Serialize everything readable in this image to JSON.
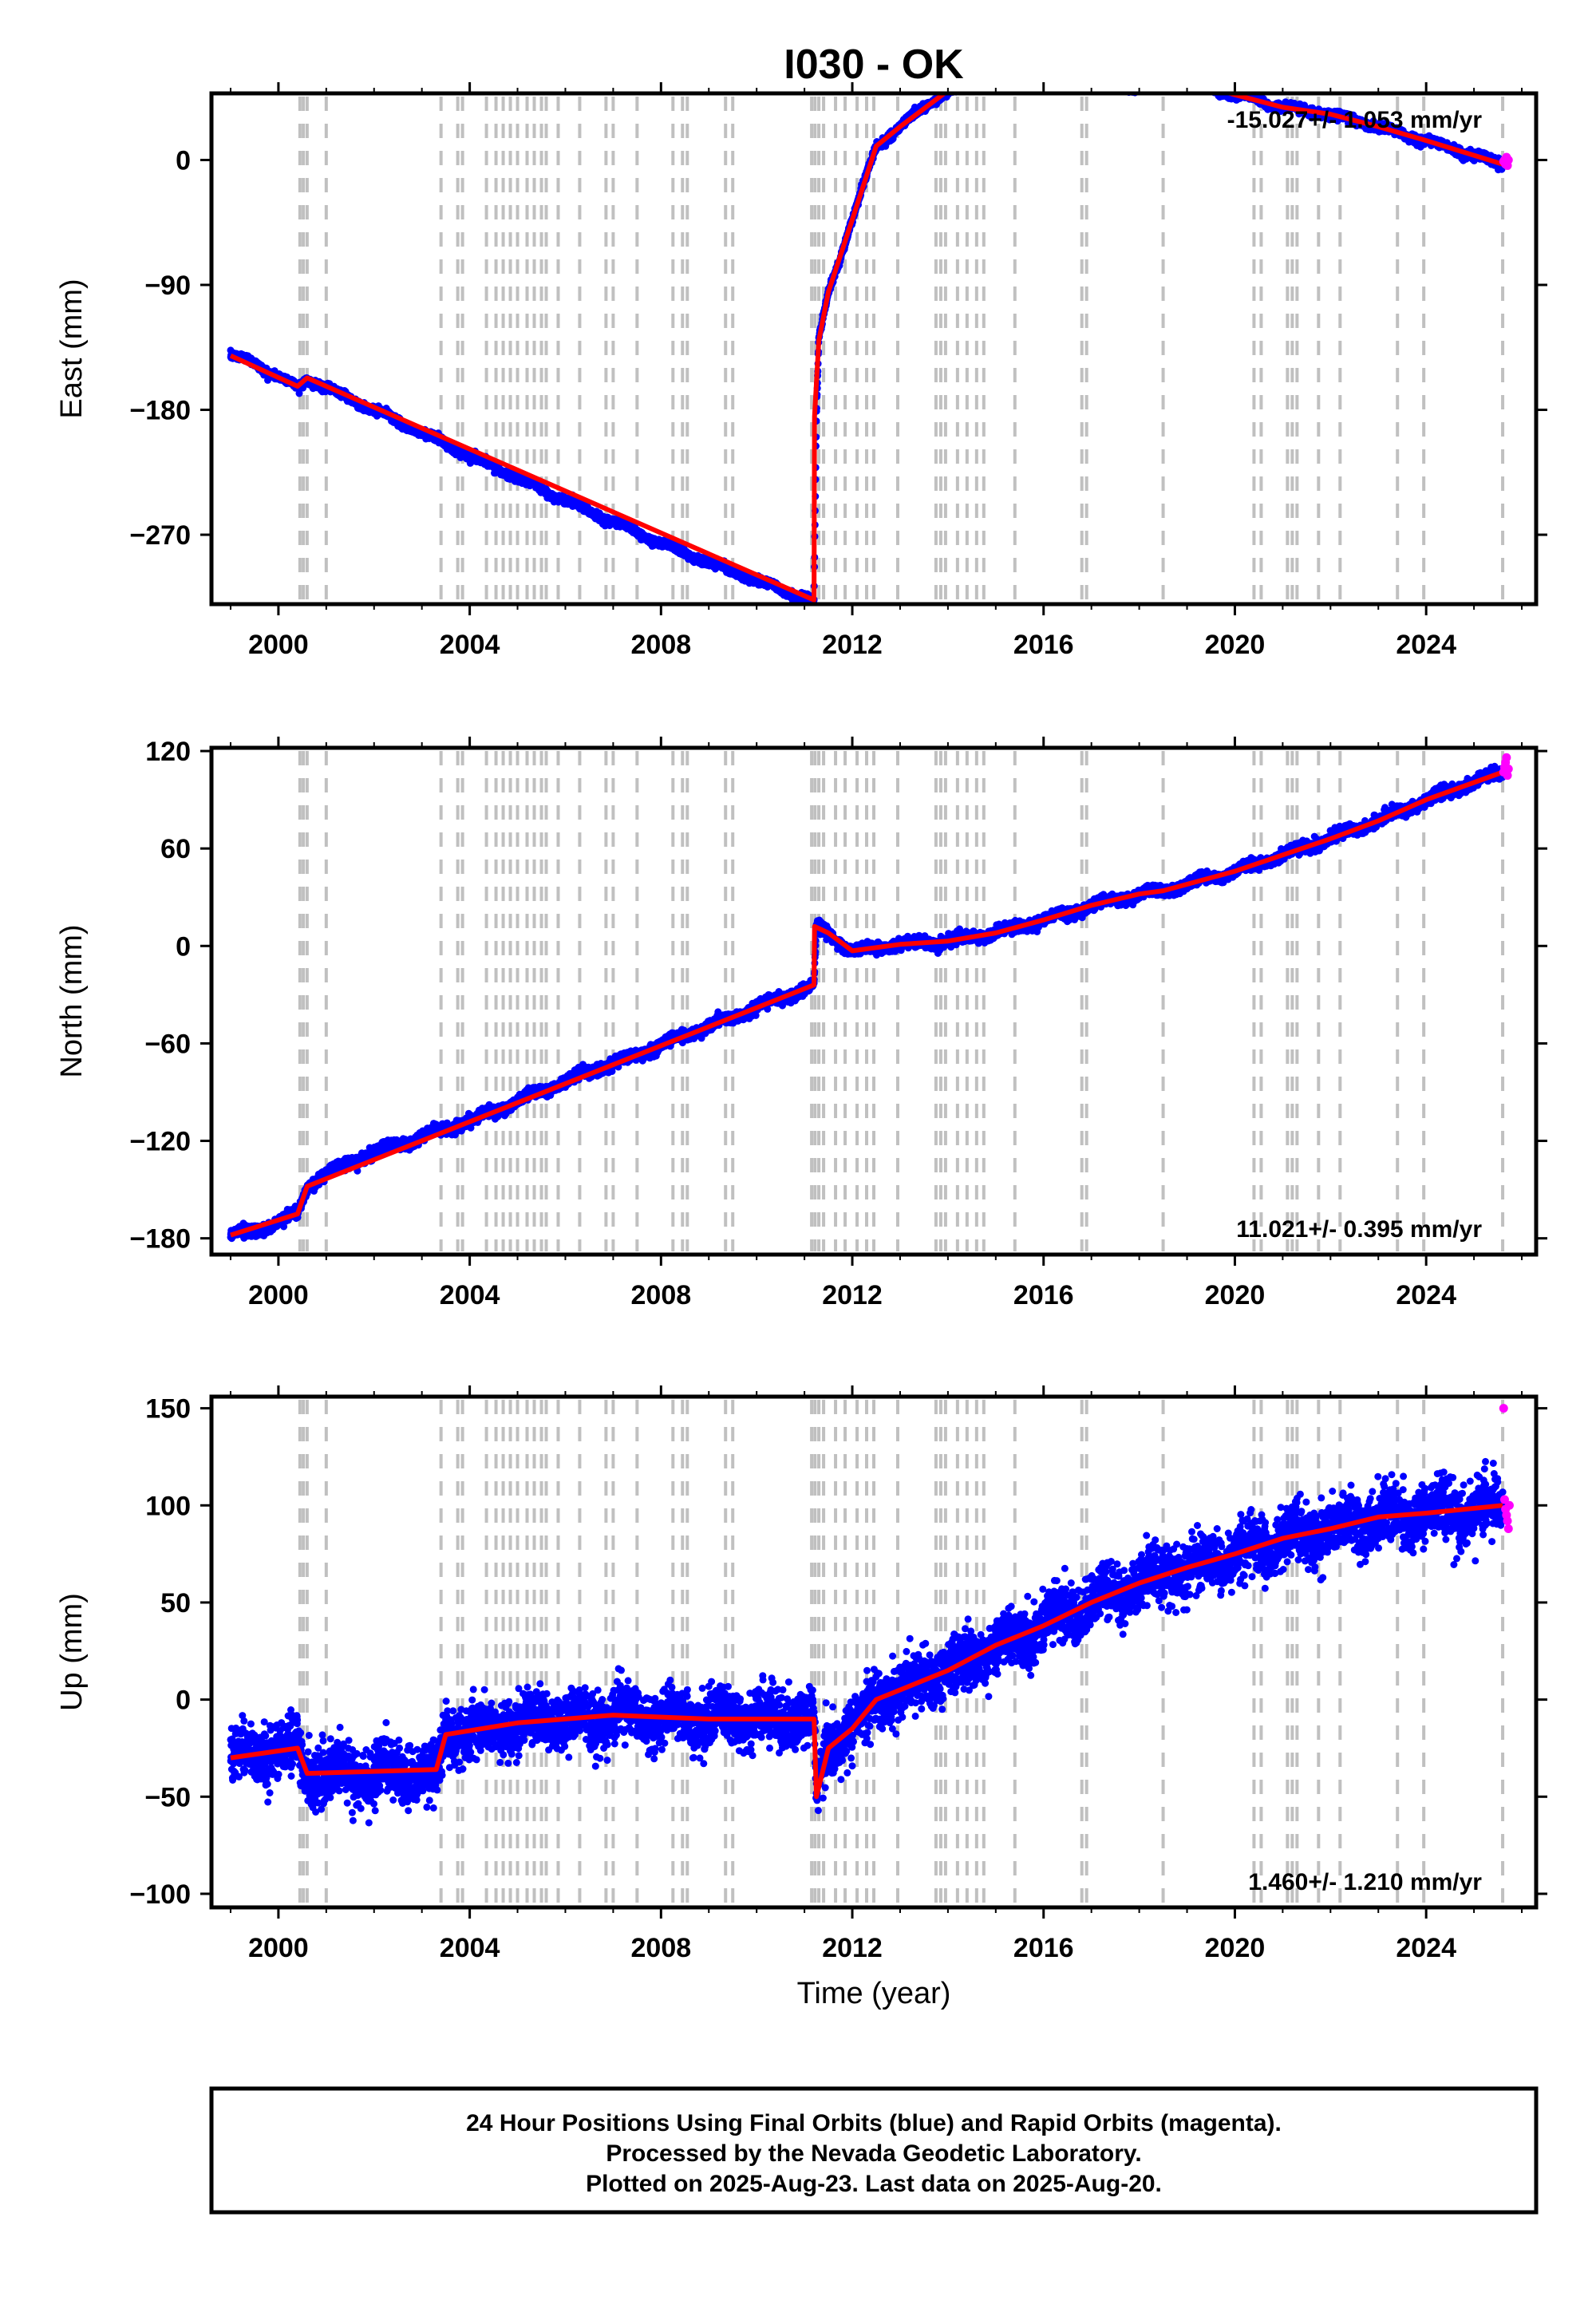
{
  "chart_data": [
    {
      "type": "scatter",
      "title": "I030 - OK",
      "ylabel": "East (mm)",
      "xlabel": "",
      "rate_label": "-15.027+/- 1.053 mm/yr",
      "xlim": [
        1998.6,
        2026.3
      ],
      "ylim": [
        -320,
        48
      ],
      "xticks": [
        2000,
        2004,
        2008,
        2012,
        2016,
        2020,
        2024
      ],
      "yticks": [
        0,
        -90,
        -180,
        -270
      ],
      "grid": false,
      "series": [
        {
          "name": "24 Hour Positions Using Final Orbits (blue)",
          "color": "#0000ff",
          "anchors": [
            [
              1999.0,
              -141
            ],
            [
              1999.5,
              -146
            ],
            [
              2000.0,
              -156
            ],
            [
              2000.4,
              -164
            ],
            [
              2000.6,
              -158
            ],
            [
              2001.0,
              -164
            ],
            [
              2002.0,
              -180
            ],
            [
              2004.0,
              -213
            ],
            [
              2006.0,
              -245
            ],
            [
              2008.0,
              -276
            ],
            [
              2010.0,
              -303
            ],
            [
              2011.2,
              -318
            ],
            [
              2011.25,
              -185
            ],
            [
              2011.3,
              -130
            ],
            [
              2011.5,
              -95
            ],
            [
              2012.0,
              -43
            ],
            [
              2012.5,
              10
            ],
            [
              2013.0,
              24
            ],
            [
              2013.5,
              38
            ],
            [
              2014.0,
              50
            ],
            [
              2015.0,
              58
            ],
            [
              2016.0,
              62
            ],
            [
              2017.0,
              56
            ],
            [
              2018.0,
              51
            ],
            [
              2018.5,
              57
            ],
            [
              2019.0,
              57
            ],
            [
              2020.0,
              47
            ],
            [
              2021.0,
              38
            ],
            [
              2022.0,
              33
            ],
            [
              2023.0,
              24
            ],
            [
              2024.0,
              14
            ],
            [
              2025.6,
              -3
            ]
          ]
        },
        {
          "name": "Rapid Orbits (magenta)",
          "color": "#ff00ff",
          "points": [
            [
              2025.62,
              -1
            ],
            [
              2025.64,
              0
            ],
            [
              2025.66,
              -3
            ],
            [
              2025.68,
              2
            ],
            [
              2025.7,
              -4
            ],
            [
              2025.72,
              0
            ]
          ]
        },
        {
          "name": "model",
          "color": "#ff0000",
          "points": [
            [
              1999.0,
              -141
            ],
            [
              2000.4,
              -163
            ],
            [
              2000.6,
              -157
            ],
            [
              2011.2,
              -317
            ],
            [
              2011.21,
              -185
            ],
            [
              2011.3,
              -130
            ],
            [
              2011.5,
              -95
            ],
            [
              2012.0,
              -43
            ],
            [
              2012.5,
              10
            ],
            [
              2013.0,
              24
            ],
            [
              2014.0,
              50
            ],
            [
              2015.0,
              58
            ],
            [
              2016.0,
              62
            ],
            [
              2017.0,
              56
            ],
            [
              2018.45,
              52
            ],
            [
              2018.5,
              57
            ],
            [
              2019.0,
              57
            ],
            [
              2020.0,
              47
            ],
            [
              2021.0,
              38
            ],
            [
              2022.0,
              33
            ],
            [
              2023.0,
              24
            ],
            [
              2024.0,
              14
            ],
            [
              2025.6,
              -3
            ]
          ]
        }
      ]
    },
    {
      "type": "scatter",
      "title": "",
      "ylabel": "North (mm)",
      "xlabel": "",
      "rate_label": "11.021+/- 0.395 mm/yr",
      "xlim": [
        1998.6,
        2026.3
      ],
      "ylim": [
        -190,
        122
      ],
      "xticks": [
        2000,
        2004,
        2008,
        2012,
        2016,
        2020,
        2024
      ],
      "yticks": [
        120,
        60,
        0,
        -60,
        -120,
        -180
      ],
      "grid": false,
      "series": [
        {
          "name": "24 Hour Positions Using Final Orbits (blue)",
          "color": "#0000ff",
          "anchors": [
            [
              1999.0,
              -178
            ],
            [
              1999.5,
              -175
            ],
            [
              2000.0,
              -170
            ],
            [
              2000.4,
              -165
            ],
            [
              2000.6,
              -148
            ],
            [
              2001.0,
              -140
            ],
            [
              2002.0,
              -127
            ],
            [
              2004.0,
              -108
            ],
            [
              2006.0,
              -83
            ],
            [
              2008.0,
              -61
            ],
            [
              2010.0,
              -38
            ],
            [
              2011.2,
              -24
            ],
            [
              2011.25,
              12
            ],
            [
              2011.5,
              8
            ],
            [
              2012.0,
              -3
            ],
            [
              2013.0,
              1
            ],
            [
              2014.0,
              3
            ],
            [
              2015.0,
              8
            ],
            [
              2016.0,
              16
            ],
            [
              2017.0,
              25
            ],
            [
              2018.0,
              32
            ],
            [
              2018.5,
              34
            ],
            [
              2019.0,
              38
            ],
            [
              2020.0,
              46
            ],
            [
              2021.0,
              56
            ],
            [
              2022.0,
              66
            ],
            [
              2023.0,
              77
            ],
            [
              2024.0,
              90
            ],
            [
              2025.6,
              107
            ]
          ]
        },
        {
          "name": "Rapid Orbits (magenta)",
          "color": "#ff00ff",
          "points": [
            [
              2025.62,
              107
            ],
            [
              2025.64,
              110
            ],
            [
              2025.66,
              113
            ],
            [
              2025.68,
              116
            ],
            [
              2025.7,
              105
            ],
            [
              2025.72,
              109
            ]
          ]
        },
        {
          "name": "model",
          "color": "#ff0000",
          "points": [
            [
              1999.0,
              -178
            ],
            [
              2000.4,
              -165
            ],
            [
              2000.6,
              -148
            ],
            [
              2011.2,
              -24
            ],
            [
              2011.21,
              12
            ],
            [
              2011.5,
              8
            ],
            [
              2012.0,
              -3
            ],
            [
              2013.0,
              1
            ],
            [
              2014.0,
              3
            ],
            [
              2015.0,
              8
            ],
            [
              2016.0,
              16
            ],
            [
              2017.0,
              25
            ],
            [
              2018.0,
              32
            ],
            [
              2018.5,
              34
            ],
            [
              2019.0,
              38
            ],
            [
              2020.0,
              46
            ],
            [
              2021.0,
              56
            ],
            [
              2022.0,
              66
            ],
            [
              2023.0,
              77
            ],
            [
              2024.0,
              90
            ],
            [
              2025.6,
              107
            ]
          ]
        }
      ]
    },
    {
      "type": "scatter",
      "title": "",
      "ylabel": "Up (mm)",
      "xlabel": "Time (year)",
      "rate_label": "1.460+/- 1.210 mm/yr",
      "xlim": [
        1998.6,
        2026.3
      ],
      "ylim": [
        -107,
        156
      ],
      "xticks": [
        2000,
        2004,
        2008,
        2012,
        2016,
        2020,
        2024
      ],
      "yticks": [
        150,
        100,
        50,
        0,
        -50,
        -100
      ],
      "grid": false,
      "series": [
        {
          "name": "24 Hour Positions Using Final Orbits (blue)",
          "color": "#0000ff",
          "anchors": [
            [
              1999.0,
              -30
            ],
            [
              2000.4,
              -25
            ],
            [
              2000.6,
              -38
            ],
            [
              2003.3,
              -38
            ],
            [
              2003.5,
              -18
            ],
            [
              2005.0,
              -12
            ],
            [
              2007.0,
              -8
            ],
            [
              2009.0,
              -10
            ],
            [
              2011.2,
              -10
            ],
            [
              2011.25,
              -50
            ],
            [
              2011.5,
              -25
            ],
            [
              2012.0,
              -15
            ],
            [
              2012.5,
              0
            ],
            [
              2013.0,
              5
            ],
            [
              2014.0,
              15
            ],
            [
              2015.0,
              28
            ],
            [
              2016.0,
              38
            ],
            [
              2017.0,
              50
            ],
            [
              2018.0,
              60
            ],
            [
              2019.0,
              68
            ],
            [
              2020.0,
              75
            ],
            [
              2021.0,
              83
            ],
            [
              2022.0,
              88
            ],
            [
              2023.0,
              94
            ],
            [
              2024.0,
              96
            ],
            [
              2025.6,
              100
            ]
          ]
        },
        {
          "name": "Rapid Orbits (magenta)",
          "color": "#ff00ff",
          "points": [
            [
              2025.62,
              150
            ],
            [
              2025.64,
              103
            ],
            [
              2025.66,
              98
            ],
            [
              2025.68,
              95
            ],
            [
              2025.7,
              92
            ],
            [
              2025.72,
              88
            ],
            [
              2025.74,
              100
            ]
          ]
        },
        {
          "name": "model",
          "color": "#ff0000",
          "points": [
            [
              1999.0,
              -30
            ],
            [
              2000.4,
              -25
            ],
            [
              2000.6,
              -38
            ],
            [
              2003.3,
              -36
            ],
            [
              2003.5,
              -18
            ],
            [
              2005.0,
              -12
            ],
            [
              2007.0,
              -8
            ],
            [
              2009.0,
              -10
            ],
            [
              2011.2,
              -10
            ],
            [
              2011.25,
              -50
            ],
            [
              2011.5,
              -25
            ],
            [
              2012.0,
              -15
            ],
            [
              2012.5,
              0
            ],
            [
              2013.0,
              5
            ],
            [
              2014.0,
              15
            ],
            [
              2015.0,
              28
            ],
            [
              2016.0,
              38
            ],
            [
              2017.0,
              50
            ],
            [
              2018.0,
              60
            ],
            [
              2019.0,
              68
            ],
            [
              2020.0,
              75
            ],
            [
              2021.0,
              83
            ],
            [
              2022.0,
              88
            ],
            [
              2023.0,
              94
            ],
            [
              2024.0,
              96
            ],
            [
              2025.6,
              100
            ]
          ]
        }
      ]
    }
  ],
  "event_lines": [
    2000.45,
    2000.52,
    2000.6,
    2001.0,
    2003.4,
    2003.75,
    2003.85,
    2004.35,
    2004.55,
    2004.7,
    2004.85,
    2005.0,
    2005.2,
    2005.35,
    2005.5,
    2005.6,
    2005.85,
    2006.3,
    2006.85,
    2007.0,
    2007.5,
    2008.25,
    2008.45,
    2008.55,
    2009.35,
    2009.5,
    2011.15,
    2011.22,
    2011.3,
    2011.4,
    2011.65,
    2011.85,
    2012.1,
    2012.3,
    2012.45,
    2012.95,
    2013.75,
    2013.85,
    2013.95,
    2014.2,
    2014.4,
    2014.6,
    2014.75,
    2015.4,
    2016.8,
    2016.9,
    2018.5,
    2020.4,
    2020.55,
    2021.1,
    2021.2,
    2021.3,
    2021.75,
    2022.2,
    2023.4,
    2023.95,
    2025.6
  ],
  "colors": {
    "final": "#0000ff",
    "rapid": "#ff00ff",
    "model": "#ff0000",
    "event_line": "#c0c0c0"
  },
  "caption": {
    "line1": "24 Hour Positions Using Final Orbits (blue) and Rapid Orbits (magenta).",
    "line2": "Processed by the Nevada Geodetic Laboratory.",
    "line3": "Plotted on 2025-Aug-23. Last data on 2025-Aug-20."
  }
}
